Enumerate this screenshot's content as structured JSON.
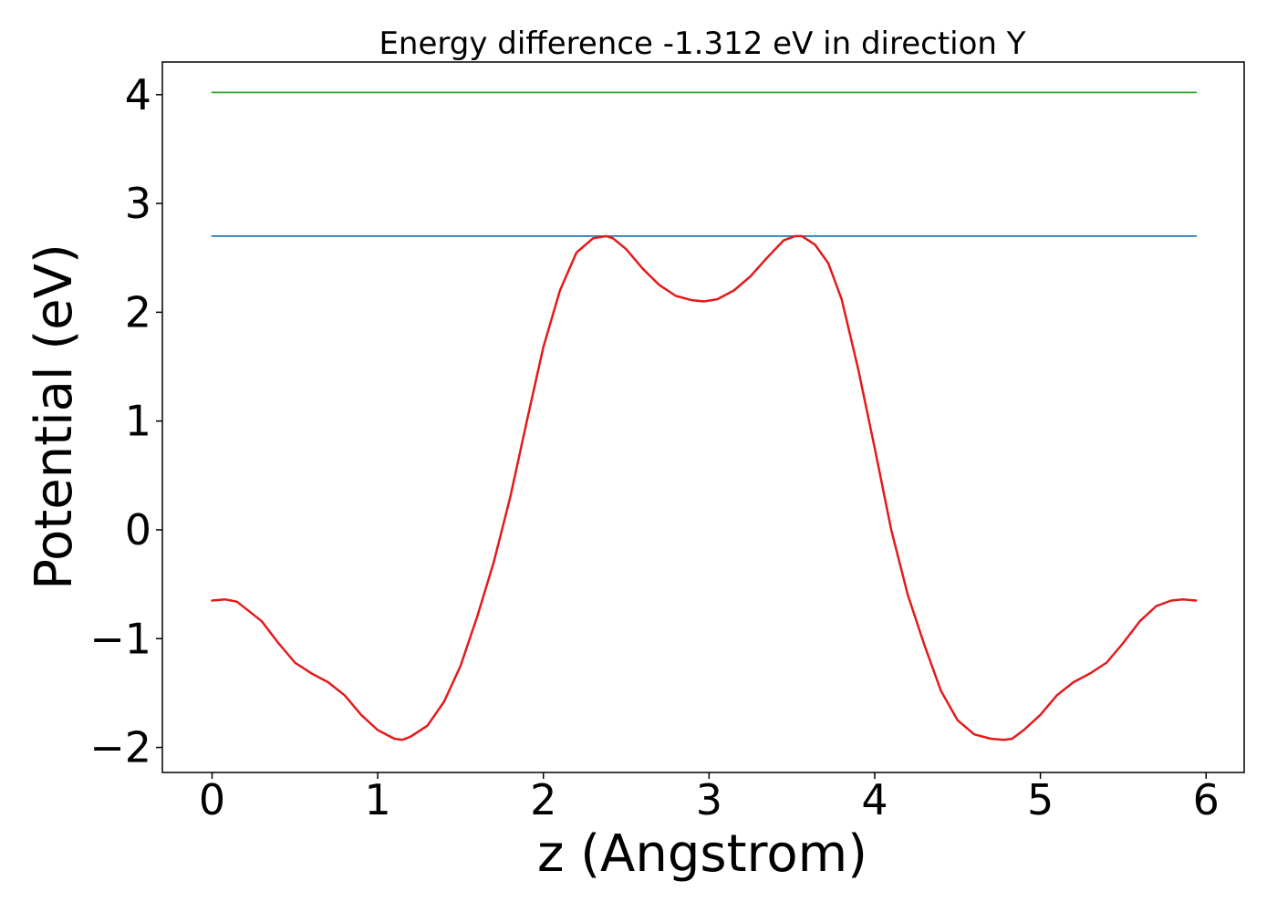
{
  "chart_data": {
    "type": "line",
    "title": "Energy difference -1.312 eV in direction Y",
    "xlabel": "z (Angstrom)",
    "ylabel": "Potential (eV)",
    "xlim": [
      -0.3,
      6.23
    ],
    "ylim": [
      -2.23,
      4.3
    ],
    "xticks": [
      0,
      1,
      2,
      3,
      4,
      5,
      6
    ],
    "xtick_labels": [
      "0",
      "1",
      "2",
      "3",
      "4",
      "5",
      "6"
    ],
    "yticks": [
      -2,
      -1,
      0,
      1,
      2,
      3,
      4
    ],
    "ytick_labels": [
      "−2",
      "−1",
      "0",
      "1",
      "2",
      "3",
      "4"
    ],
    "grid": false,
    "legend": "none",
    "series": [
      {
        "color": "#2ca02c",
        "x": [
          0,
          5.94
        ],
        "y": [
          4.02,
          4.02
        ]
      },
      {
        "color": "#1f77b4",
        "x": [
          0,
          5.94
        ],
        "y": [
          2.7,
          2.7
        ]
      },
      {
        "color": "#e31a1c",
        "x": [
          0,
          0.08,
          0.15,
          0.3,
          0.4,
          0.5,
          0.6,
          0.7,
          0.8,
          0.9,
          1.0,
          1.1,
          1.15,
          1.2,
          1.3,
          1.4,
          1.5,
          1.6,
          1.7,
          1.8,
          1.9,
          2.0,
          2.1,
          2.2,
          2.3,
          2.38,
          2.42,
          2.5,
          2.6,
          2.7,
          2.8,
          2.9,
          2.97,
          3.05,
          3.15,
          3.25,
          3.35,
          3.45,
          3.52,
          3.56,
          3.64,
          3.72,
          3.8,
          3.9,
          4.0,
          4.1,
          4.2,
          4.3,
          4.4,
          4.5,
          4.6,
          4.7,
          4.78,
          4.83,
          4.9,
          5.0,
          5.1,
          5.2,
          5.3,
          5.4,
          5.5,
          5.6,
          5.7,
          5.79,
          5.86,
          5.94
        ],
        "y": [
          -0.65,
          -0.64,
          -0.66,
          -0.84,
          -1.04,
          -1.22,
          -1.32,
          -1.4,
          -1.52,
          -1.7,
          -1.84,
          -1.92,
          -1.93,
          -1.9,
          -1.8,
          -1.58,
          -1.25,
          -0.8,
          -0.3,
          0.3,
          1.0,
          1.68,
          2.2,
          2.55,
          2.68,
          2.7,
          2.68,
          2.58,
          2.4,
          2.25,
          2.15,
          2.11,
          2.1,
          2.12,
          2.2,
          2.33,
          2.5,
          2.66,
          2.7,
          2.7,
          2.62,
          2.45,
          2.12,
          1.48,
          0.75,
          0.0,
          -0.6,
          -1.06,
          -1.48,
          -1.75,
          -1.88,
          -1.92,
          -1.93,
          -1.92,
          -1.84,
          -1.7,
          -1.52,
          -1.4,
          -1.32,
          -1.22,
          -1.04,
          -0.84,
          -0.7,
          -0.65,
          -0.64,
          -0.65
        ]
      }
    ]
  }
}
